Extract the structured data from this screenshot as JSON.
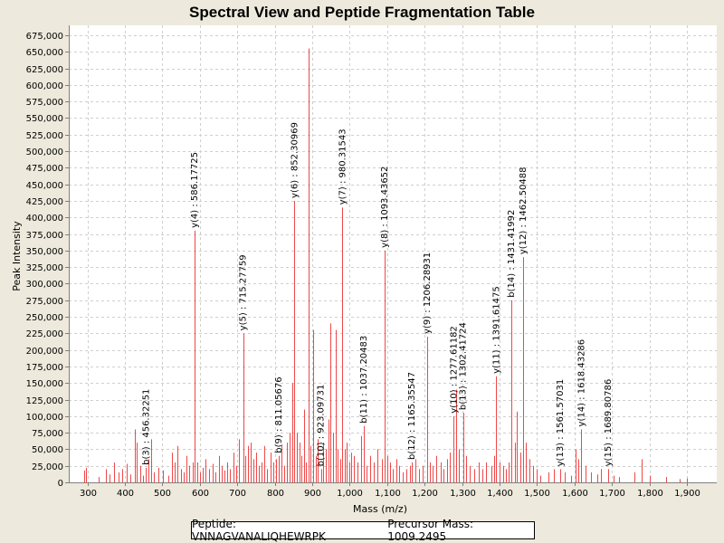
{
  "chart_data": {
    "type": "bar",
    "title": "Spectral View and Peptide Fragmentation Table",
    "xlabel": "Mass (m/z)",
    "ylabel": "Peak Intensity",
    "xlim": [
      250,
      1980
    ],
    "ylim": [
      0,
      690000
    ],
    "xticks": [
      300,
      400,
      500,
      600,
      700,
      800,
      900,
      1000,
      1100,
      1200,
      1300,
      1400,
      1500,
      1600,
      1700,
      1800,
      1900
    ],
    "xtick_labels": [
      "300",
      "400",
      "500",
      "600",
      "700",
      "800",
      "900",
      "1,000",
      "1,100",
      "1,200",
      "1,300",
      "1,400",
      "1,500",
      "1,600",
      "1,700",
      "1,800",
      "1,900"
    ],
    "yticks": [
      0,
      25000,
      50000,
      75000,
      100000,
      125000,
      150000,
      175000,
      200000,
      225000,
      250000,
      275000,
      300000,
      325000,
      350000,
      375000,
      400000,
      425000,
      450000,
      475000,
      500000,
      525000,
      550000,
      575000,
      600000,
      625000,
      650000,
      675000
    ],
    "ytick_labels": [
      "0",
      "25,000",
      "50,000",
      "75,000",
      "100,000",
      "125,000",
      "150,000",
      "175,000",
      "200,000",
      "225,000",
      "250,000",
      "275,000",
      "300,000",
      "325,000",
      "350,000",
      "375,000",
      "400,000",
      "425,000",
      "450,000",
      "475,000",
      "500,000",
      "525,000",
      "550,000",
      "575,000",
      "600,000",
      "625,000",
      "650,000",
      "675,000"
    ],
    "grid": true,
    "series_color": "#f04848",
    "peaks": [
      [
        290,
        18000
      ],
      [
        297,
        22000
      ],
      [
        330,
        8000
      ],
      [
        350,
        20000
      ],
      [
        358,
        12000
      ],
      [
        370,
        30000
      ],
      [
        382,
        15000
      ],
      [
        392,
        20000
      ],
      [
        404,
        28000
      ],
      [
        415,
        12000
      ],
      [
        426,
        80000
      ],
      [
        432,
        60000
      ],
      [
        440,
        25000
      ],
      [
        448,
        10000
      ],
      [
        456.32,
        22000
      ],
      [
        463,
        35000
      ],
      [
        470,
        65000
      ],
      [
        478,
        15000
      ],
      [
        490,
        22000
      ],
      [
        502,
        18000
      ],
      [
        515,
        10000
      ],
      [
        526,
        45000
      ],
      [
        533,
        30000
      ],
      [
        541,
        55000
      ],
      [
        549,
        20000
      ],
      [
        556,
        15000
      ],
      [
        563,
        40000
      ],
      [
        571,
        25000
      ],
      [
        580,
        30000
      ],
      [
        586.18,
        380000
      ],
      [
        592,
        30000
      ],
      [
        600,
        15000
      ],
      [
        607,
        22000
      ],
      [
        615,
        35000
      ],
      [
        625,
        20000
      ],
      [
        635,
        28000
      ],
      [
        642,
        15000
      ],
      [
        650,
        40000
      ],
      [
        658,
        25000
      ],
      [
        665,
        18000
      ],
      [
        672,
        30000
      ],
      [
        680,
        20000
      ],
      [
        690,
        45000
      ],
      [
        697,
        25000
      ],
      [
        704,
        65000
      ],
      [
        715.28,
        225000
      ],
      [
        721,
        40000
      ],
      [
        728,
        55000
      ],
      [
        736,
        60000
      ],
      [
        743,
        35000
      ],
      [
        750,
        45000
      ],
      [
        757,
        25000
      ],
      [
        765,
        30000
      ],
      [
        773,
        55000
      ],
      [
        780,
        20000
      ],
      [
        788,
        45000
      ],
      [
        795,
        30000
      ],
      [
        803,
        35000
      ],
      [
        811.06,
        40000
      ],
      [
        818,
        55000
      ],
      [
        826,
        25000
      ],
      [
        833,
        60000
      ],
      [
        840,
        75000
      ],
      [
        847,
        150000
      ],
      [
        852.31,
        425000
      ],
      [
        858,
        75000
      ],
      [
        865,
        60000
      ],
      [
        872,
        40000
      ],
      [
        878,
        110000
      ],
      [
        884,
        30000
      ],
      [
        890,
        655000
      ],
      [
        896,
        55000
      ],
      [
        902,
        230000
      ],
      [
        909,
        40000
      ],
      [
        915,
        65000
      ],
      [
        923.1,
        20000
      ],
      [
        930,
        60000
      ],
      [
        937,
        50000
      ],
      [
        943,
        95000
      ],
      [
        948,
        240000
      ],
      [
        955,
        75000
      ],
      [
        962,
        230000
      ],
      [
        968,
        50000
      ],
      [
        974,
        35000
      ],
      [
        980.32,
        415000
      ],
      [
        986,
        50000
      ],
      [
        992,
        60000
      ],
      [
        998,
        30000
      ],
      [
        1005,
        45000
      ],
      [
        1012,
        40000
      ],
      [
        1020,
        30000
      ],
      [
        1030,
        70000
      ],
      [
        1037.2,
        85000
      ],
      [
        1045,
        25000
      ],
      [
        1055,
        40000
      ],
      [
        1065,
        30000
      ],
      [
        1075,
        50000
      ],
      [
        1085,
        35000
      ],
      [
        1093.44,
        350000
      ],
      [
        1100,
        40000
      ],
      [
        1108,
        30000
      ],
      [
        1115,
        20000
      ],
      [
        1125,
        35000
      ],
      [
        1133,
        25000
      ],
      [
        1142,
        15000
      ],
      [
        1152,
        20000
      ],
      [
        1160,
        25000
      ],
      [
        1165.36,
        30000
      ],
      [
        1175,
        35000
      ],
      [
        1185,
        20000
      ],
      [
        1195,
        25000
      ],
      [
        1206.29,
        220000
      ],
      [
        1214,
        30000
      ],
      [
        1222,
        25000
      ],
      [
        1232,
        40000
      ],
      [
        1242,
        30000
      ],
      [
        1250,
        20000
      ],
      [
        1260,
        35000
      ],
      [
        1268,
        45000
      ],
      [
        1277.61,
        100000
      ],
      [
        1285,
        140000
      ],
      [
        1292,
        50000
      ],
      [
        1302.42,
        105000
      ],
      [
        1310,
        40000
      ],
      [
        1320,
        25000
      ],
      [
        1332,
        20000
      ],
      [
        1345,
        30000
      ],
      [
        1355,
        20000
      ],
      [
        1365,
        30000
      ],
      [
        1378,
        25000
      ],
      [
        1385,
        40000
      ],
      [
        1391.61,
        160000
      ],
      [
        1400,
        30000
      ],
      [
        1410,
        25000
      ],
      [
        1418,
        20000
      ],
      [
        1425,
        30000
      ],
      [
        1431.42,
        275000
      ],
      [
        1440,
        60000
      ],
      [
        1447,
        107000
      ],
      [
        1455,
        45000
      ],
      [
        1462.5,
        340000
      ],
      [
        1470,
        60000
      ],
      [
        1480,
        35000
      ],
      [
        1490,
        25000
      ],
      [
        1500,
        20000
      ],
      [
        1510,
        10000
      ],
      [
        1530,
        15000
      ],
      [
        1545,
        20000
      ],
      [
        1561.57,
        20000
      ],
      [
        1575,
        15000
      ],
      [
        1590,
        10000
      ],
      [
        1603,
        50000
      ],
      [
        1610,
        35000
      ],
      [
        1618.43,
        80000
      ],
      [
        1630,
        25000
      ],
      [
        1645,
        15000
      ],
      [
        1660,
        12000
      ],
      [
        1670,
        20000
      ],
      [
        1689.81,
        20000
      ],
      [
        1705,
        10000
      ],
      [
        1720,
        8000
      ],
      [
        1760,
        15000
      ],
      [
        1780,
        35000
      ],
      [
        1800,
        10000
      ],
      [
        1845,
        8000
      ],
      [
        1880,
        5000
      ],
      [
        1900,
        6000
      ]
    ],
    "annotations": [
      {
        "label": "b(3) : 456.32251",
        "x": 456.32,
        "y": 22000
      },
      {
        "label": "y(4) : 586.17725",
        "x": 586.18,
        "y": 380000
      },
      {
        "label": "y(5) : 715.27759",
        "x": 715.28,
        "y": 225000
      },
      {
        "label": "b(9) : 811.05676",
        "x": 811.06,
        "y": 40000
      },
      {
        "label": "y(6) : 852.30969",
        "x": 852.31,
        "y": 425000
      },
      {
        "label": "b(10) : 923.09731",
        "x": 923.1,
        "y": 20000
      },
      {
        "label": "y(7) : 980.31543",
        "x": 980.32,
        "y": 415000
      },
      {
        "label": "b(11) : 1037.20483",
        "x": 1037.2,
        "y": 85000
      },
      {
        "label": "y(8) : 1093.43652",
        "x": 1093.44,
        "y": 350000
      },
      {
        "label": "b(12) : 1165.35547",
        "x": 1165.36,
        "y": 30000
      },
      {
        "label": "y(9) : 1206.28931",
        "x": 1206.29,
        "y": 220000
      },
      {
        "label": "y(10) : 1277.61182",
        "x": 1277.61,
        "y": 100000
      },
      {
        "label": "b(13) : 1302.41724",
        "x": 1302.42,
        "y": 105000
      },
      {
        "label": "y(11) : 1391.61475",
        "x": 1391.61,
        "y": 160000
      },
      {
        "label": "b(14) : 1431.41992",
        "x": 1431.42,
        "y": 275000
      },
      {
        "label": "y(12) : 1462.50488",
        "x": 1462.5,
        "y": 340000
      },
      {
        "label": "y(13) : 1561.57031",
        "x": 1561.57,
        "y": 20000
      },
      {
        "label": "y(14) : 1618.43286",
        "x": 1618.43,
        "y": 80000
      },
      {
        "label": "y(15) : 1689.80786",
        "x": 1689.81,
        "y": 20000
      }
    ]
  },
  "footer": {
    "peptide_label": "Peptide: VNNAGVANALIQHEWRPK",
    "precursor_label": "Precursor Mass: 1009.2495"
  }
}
